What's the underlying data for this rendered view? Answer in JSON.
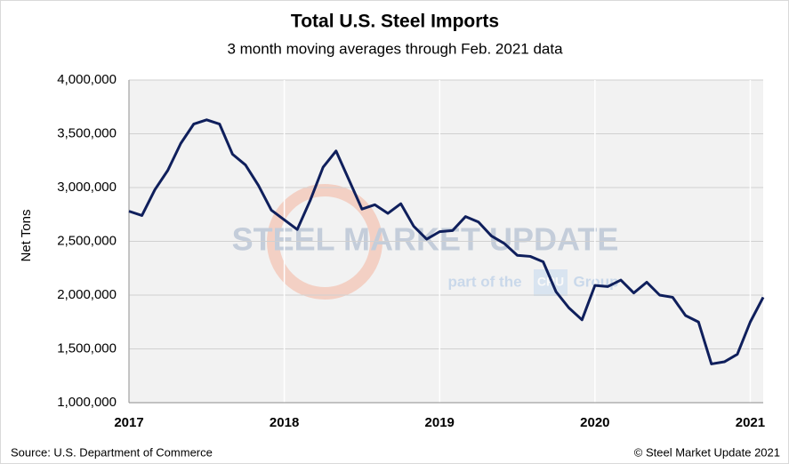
{
  "chart_data": {
    "type": "line",
    "title": "Total U.S. Steel Imports",
    "subtitle": "3 month moving averages through Feb. 2021 data",
    "y_label": "Net Tons",
    "source": "Source: U.S. Department of Commerce",
    "copyright": "© Steel Market Update 2021",
    "watermark": {
      "main": "STEEL MARKET UPDATE",
      "sub": "part of the",
      "logo": "CRU",
      "group": "Group"
    },
    "categories": [
      "2017",
      null,
      null,
      null,
      null,
      null,
      null,
      null,
      null,
      null,
      null,
      null,
      "2018",
      null,
      null,
      null,
      null,
      null,
      null,
      null,
      null,
      null,
      null,
      null,
      "2019",
      null,
      null,
      null,
      null,
      null,
      null,
      null,
      null,
      null,
      null,
      null,
      "2020",
      null,
      null,
      null,
      null,
      null,
      null,
      null,
      null,
      null,
      null,
      null,
      "2021",
      null
    ],
    "series": [
      {
        "name": "Total U.S. Steel Imports",
        "color": "#0f1f5c",
        "values": [
          2780000,
          2740000,
          2980000,
          3160000,
          3410000,
          3590000,
          3630000,
          3590000,
          3310000,
          3210000,
          3020000,
          2790000,
          2700000,
          2610000,
          2880000,
          3190000,
          3340000,
          3070000,
          2800000,
          2840000,
          2760000,
          2850000,
          2640000,
          2520000,
          2590000,
          2600000,
          2730000,
          2680000,
          2550000,
          2480000,
          2370000,
          2360000,
          2310000,
          2030000,
          1880000,
          1770000,
          2090000,
          2080000,
          2140000,
          2020000,
          2120000,
          2000000,
          1980000,
          1810000,
          1750000,
          1360000,
          1380000,
          1450000,
          1750000,
          1980000
        ]
      }
    ],
    "ylim": [
      1000000,
      4000000
    ],
    "yticks": [
      {
        "value": 1000000,
        "label": "1,000,000"
      },
      {
        "value": 1500000,
        "label": "1,500,000"
      },
      {
        "value": 2000000,
        "label": "2,000,000"
      },
      {
        "value": 2500000,
        "label": "2,500,000"
      },
      {
        "value": 3000000,
        "label": "3,000,000"
      },
      {
        "value": 3500000,
        "label": "3,500,000"
      },
      {
        "value": 4000000,
        "label": "4,000,000"
      }
    ],
    "grid": true
  }
}
